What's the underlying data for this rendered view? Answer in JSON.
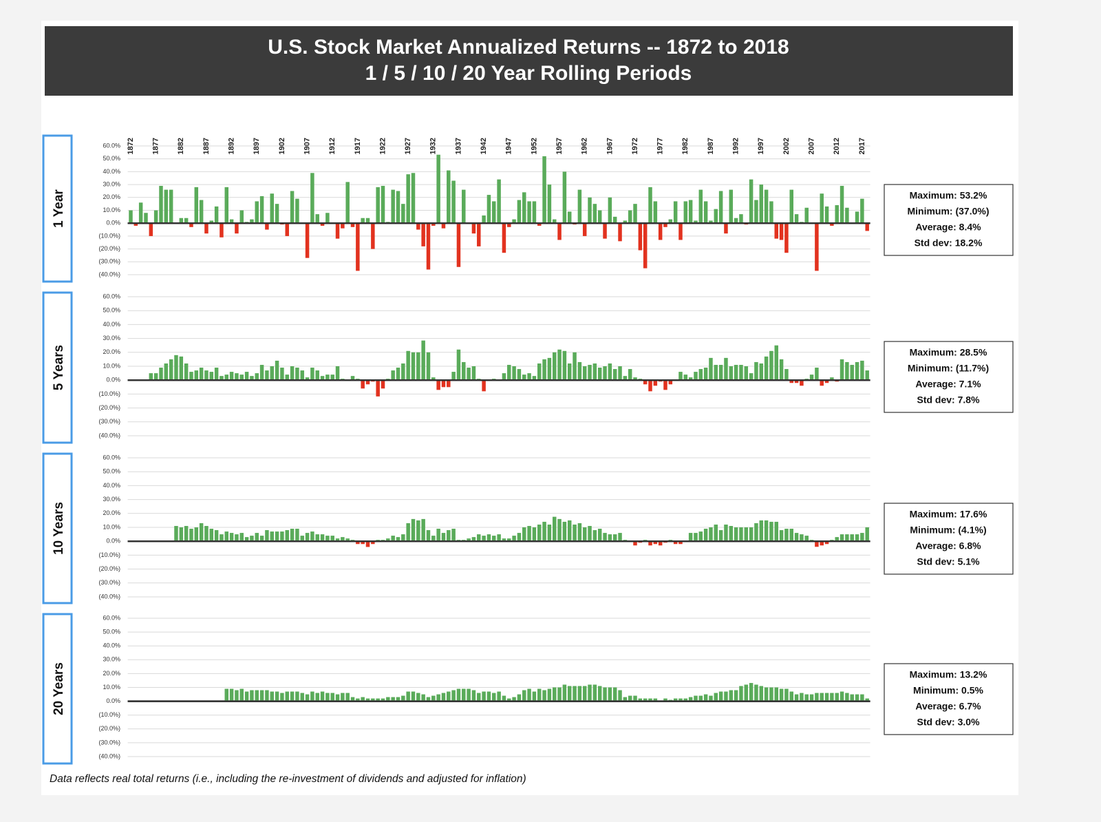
{
  "chart_data": {
    "type": "bar",
    "title": "U.S. Stock Market Annualized Returns -- 1872 to 2018",
    "subtitle": "1 / 5 / 10 / 20 Year Rolling Periods",
    "note": "Data reflects real total returns (i.e., including the re-investment of dividends and adjusted for inflation)",
    "colors": {
      "positive": "#5aab5a",
      "negative": "#e2321f"
    },
    "grid": true,
    "x": [
      1872,
      1873,
      1874,
      1875,
      1876,
      1877,
      1878,
      1879,
      1880,
      1881,
      1882,
      1883,
      1884,
      1885,
      1886,
      1887,
      1888,
      1889,
      1890,
      1891,
      1892,
      1893,
      1894,
      1895,
      1896,
      1897,
      1898,
      1899,
      1900,
      1901,
      1902,
      1903,
      1904,
      1905,
      1906,
      1907,
      1908,
      1909,
      1910,
      1911,
      1912,
      1913,
      1914,
      1915,
      1916,
      1917,
      1918,
      1919,
      1920,
      1921,
      1922,
      1923,
      1924,
      1925,
      1926,
      1927,
      1928,
      1929,
      1930,
      1931,
      1932,
      1933,
      1934,
      1935,
      1936,
      1937,
      1938,
      1939,
      1940,
      1941,
      1942,
      1943,
      1944,
      1945,
      1946,
      1947,
      1948,
      1949,
      1950,
      1951,
      1952,
      1953,
      1954,
      1955,
      1956,
      1957,
      1958,
      1959,
      1960,
      1961,
      1962,
      1963,
      1964,
      1965,
      1966,
      1967,
      1968,
      1969,
      1970,
      1971,
      1972,
      1973,
      1974,
      1975,
      1976,
      1977,
      1978,
      1979,
      1980,
      1981,
      1982,
      1983,
      1984,
      1985,
      1986,
      1987,
      1988,
      1989,
      1990,
      1991,
      1992,
      1993,
      1994,
      1995,
      1996,
      1997,
      1998,
      1999,
      2000,
      2001,
      2002,
      2003,
      2004,
      2005,
      2006,
      2007,
      2008,
      2009,
      2010,
      2011,
      2012,
      2013,
      2014,
      2015,
      2016,
      2017,
      2018
    ],
    "xlim": [
      1871.4,
      2018.6
    ],
    "xticks": [
      1872,
      1877,
      1882,
      1887,
      1892,
      1897,
      1902,
      1907,
      1912,
      1917,
      1922,
      1927,
      1932,
      1937,
      1942,
      1947,
      1952,
      1957,
      1962,
      1967,
      1972,
      1977,
      1982,
      1987,
      1992,
      1997,
      2002,
      2007,
      2012,
      2017
    ],
    "ylim": [
      -40,
      60
    ],
    "yticks": [
      {
        "value": 60,
        "label": "60.0%"
      },
      {
        "value": 50,
        "label": "50.0%"
      },
      {
        "value": 40,
        "label": "40.0%"
      },
      {
        "value": 30,
        "label": "30.0%"
      },
      {
        "value": 20,
        "label": "20.0%"
      },
      {
        "value": 10,
        "label": "10.0%"
      },
      {
        "value": 0,
        "label": "0.0%"
      },
      {
        "value": -10,
        "label": "(10.0%)"
      },
      {
        "value": -20,
        "label": "(20.0%)"
      },
      {
        "value": -30,
        "label": "(30.0%)"
      },
      {
        "value": -40,
        "label": "(40.0%)"
      }
    ],
    "panels": [
      {
        "label": "1 Year",
        "stats": [
          "Maximum: 53.2%",
          "Minimum: (37.0%)",
          "Average: 8.4%",
          "Std dev: 18.2%"
        ],
        "values": [
          10,
          -2,
          16,
          8,
          -10,
          10,
          29,
          26,
          26,
          0,
          4,
          4,
          -3,
          28,
          18,
          -8,
          2,
          13,
          -11,
          28,
          3,
          -8,
          10,
          1,
          3,
          17,
          21,
          -5,
          23,
          15,
          -1,
          -10,
          25,
          19,
          0,
          -27,
          39,
          7,
          -2,
          8,
          0,
          -12,
          -4,
          32,
          -3,
          -37,
          4,
          4,
          -20,
          28,
          29,
          1,
          26,
          25,
          15,
          38,
          39,
          -5,
          -18,
          -36,
          -2,
          53.2,
          -4,
          41,
          33,
          -34,
          26,
          0,
          -8,
          -18,
          6,
          22,
          17,
          34,
          -23,
          -3,
          3,
          18,
          24,
          17,
          17,
          -2,
          52,
          30,
          3,
          -13,
          40,
          9,
          -1,
          26,
          -10,
          20,
          15,
          10,
          -12,
          20,
          5,
          -14,
          2,
          10,
          15,
          -21,
          -35,
          28,
          17,
          -13,
          -3,
          3,
          17,
          -13,
          17,
          18,
          2,
          26,
          17,
          2,
          11,
          25,
          -8,
          26,
          4,
          7,
          -1,
          34,
          18,
          30,
          26,
          17,
          -12,
          -13,
          -23,
          26,
          7,
          1,
          12,
          0,
          -37,
          23,
          13,
          -2,
          14,
          29,
          12,
          0,
          9,
          19,
          -6
        ]
      },
      {
        "label": "5 Years",
        "stats": [
          "Maximum: 28.5%",
          "Minimum: (11.7%)",
          "Average: 7.1%",
          "Std dev: 7.8%"
        ],
        "values": [
          null,
          null,
          null,
          null,
          5,
          5,
          9,
          12,
          15,
          18,
          17,
          12,
          6,
          7,
          9,
          7,
          6,
          9,
          3,
          4,
          6,
          5,
          4,
          6,
          3,
          5,
          11,
          7,
          10,
          14,
          9,
          4,
          10,
          9,
          7,
          2,
          9,
          7,
          3,
          4,
          4,
          10,
          1,
          0,
          3,
          1,
          -6,
          -3,
          -1,
          -11.7,
          -6,
          1,
          7,
          9,
          12,
          21,
          20,
          20,
          28.5,
          20,
          2,
          -7,
          -5,
          -5,
          6,
          22,
          13,
          9,
          10,
          1,
          -8,
          0,
          1,
          0,
          5,
          11,
          10,
          8,
          4,
          5,
          3,
          12,
          15,
          16,
          20,
          22,
          21,
          12,
          20,
          13,
          10,
          11,
          12,
          9,
          10,
          12,
          8,
          10,
          3,
          8,
          2,
          1,
          -3,
          -8,
          -4,
          -1,
          -7,
          -3,
          0,
          6,
          4,
          2,
          6,
          8,
          9,
          16,
          11,
          11,
          16,
          10,
          11,
          11,
          10,
          5,
          13,
          12,
          17,
          21,
          25,
          15,
          8,
          -2,
          -2,
          -4,
          1,
          4,
          9,
          -4,
          -2,
          2,
          -1,
          15,
          13,
          11,
          13,
          14,
          7
        ]
      },
      {
        "label": "10 Years",
        "stats": [
          "Maximum: 17.6%",
          "Minimum: (4.1%)",
          "Average: 6.8%",
          "Std dev: 5.1%"
        ],
        "values": [
          null,
          null,
          null,
          null,
          null,
          null,
          null,
          null,
          null,
          11,
          10,
          11,
          9,
          10,
          13,
          11,
          9,
          8,
          5,
          7,
          6,
          5,
          6,
          3,
          4,
          6,
          4,
          8,
          7,
          7,
          7,
          8,
          9,
          9,
          4,
          6,
          7,
          5,
          5,
          4,
          4,
          2,
          3,
          2,
          1,
          -2,
          -2,
          -4.1,
          -2,
          1,
          1,
          2,
          4,
          3,
          5,
          13,
          16,
          15,
          16,
          8,
          4,
          9,
          6,
          8,
          9,
          1,
          1,
          2,
          3,
          5,
          4,
          5,
          4,
          5,
          2,
          2,
          4,
          6,
          10,
          11,
          10,
          12,
          14,
          12,
          17.6,
          16,
          14,
          15,
          12,
          13,
          10,
          11,
          8,
          9,
          6,
          5,
          5,
          6,
          1,
          0,
          -3,
          -1,
          1,
          -3,
          -2,
          -3,
          -1,
          1,
          -2,
          -2,
          0,
          6,
          6,
          7,
          9,
          10,
          12,
          8,
          12,
          11,
          10,
          10,
          10,
          10,
          13,
          15,
          15,
          14,
          14,
          8,
          9,
          9,
          6,
          5,
          4,
          1,
          -4,
          -3,
          -2,
          1,
          3,
          5,
          5,
          5,
          5,
          6,
          10
        ]
      },
      {
        "label": "20 Years",
        "stats": [
          "Maximum: 13.2%",
          "Minimum: 0.5%",
          "Average: 6.7%",
          "Std dev: 3.0%"
        ],
        "values": [
          null,
          null,
          null,
          null,
          null,
          null,
          null,
          null,
          null,
          null,
          null,
          null,
          null,
          null,
          null,
          null,
          null,
          null,
          null,
          9,
          9,
          8,
          9,
          7,
          8,
          8,
          8,
          8,
          7,
          7,
          6,
          7,
          7,
          7,
          6,
          5,
          7,
          6,
          7,
          6,
          6,
          5,
          6,
          6,
          3,
          2,
          3,
          2,
          2,
          2,
          2,
          3,
          3,
          3,
          4,
          7,
          7,
          6,
          5,
          3,
          4,
          5,
          6,
          7,
          8,
          9,
          9,
          9,
          8,
          6,
          7,
          7,
          6,
          7,
          4,
          2,
          3,
          5,
          8,
          9,
          7,
          9,
          8,
          9,
          10,
          10,
          12,
          11,
          11,
          11,
          11,
          12,
          12,
          11,
          10,
          10,
          10,
          8,
          3,
          4,
          4,
          2,
          2,
          2,
          2,
          0.5,
          2,
          1,
          2,
          2,
          2,
          3,
          4,
          4,
          5,
          4,
          6,
          7,
          7,
          8,
          8,
          11,
          12,
          13.2,
          12,
          11,
          10,
          10,
          10,
          9,
          9,
          7,
          5,
          6,
          5,
          5,
          6,
          6,
          6,
          6,
          6,
          7,
          6,
          5,
          5,
          5,
          2
        ]
      }
    ]
  }
}
